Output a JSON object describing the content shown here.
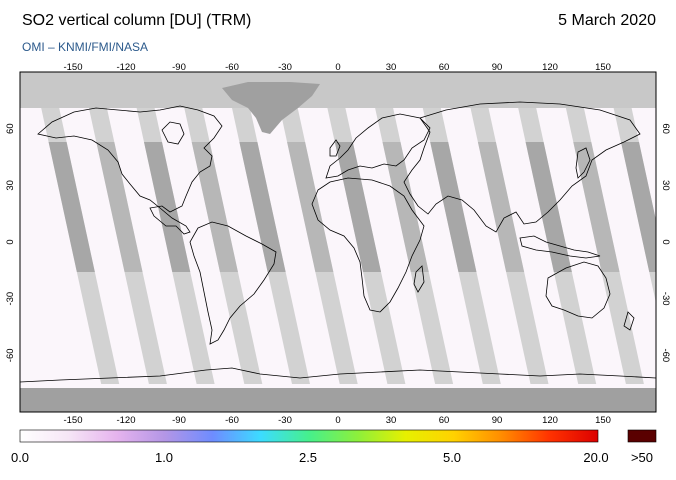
{
  "header": {
    "title": "SO2 vertical column [DU] (TRM)",
    "date": "5 March 2020",
    "credit": "OMI  –  KNMI/FMI/NASA"
  },
  "map": {
    "projection": "equirectangular",
    "lon_ticks": [
      "-150",
      "-120",
      "-90",
      "-60",
      "-30",
      "0",
      "30",
      "60",
      "90",
      "120",
      "150"
    ],
    "lat_ticks": [
      "60",
      "30",
      "0",
      "-30",
      "-60"
    ],
    "colors": {
      "no_data": "#c8c8c8",
      "swath_gap": "#d2d2d2",
      "land_nodata": "#a0a0a0",
      "low_value": "#fbf6fb",
      "coastline": "#000000"
    }
  },
  "colorbar": {
    "labels": [
      "0.0",
      "1.0",
      "2.5",
      "5.0",
      "20.0",
      ">50"
    ],
    "overflow_color": "#5a0000",
    "gradient_colors": [
      "#ffffff",
      "#f6e6f6",
      "#e6b4ee",
      "#b496e6",
      "#6e8cff",
      "#3cdcff",
      "#46f08c",
      "#8cf03c",
      "#e6f000",
      "#ffd200",
      "#ff8c00",
      "#ff3200",
      "#dc0000"
    ]
  }
}
